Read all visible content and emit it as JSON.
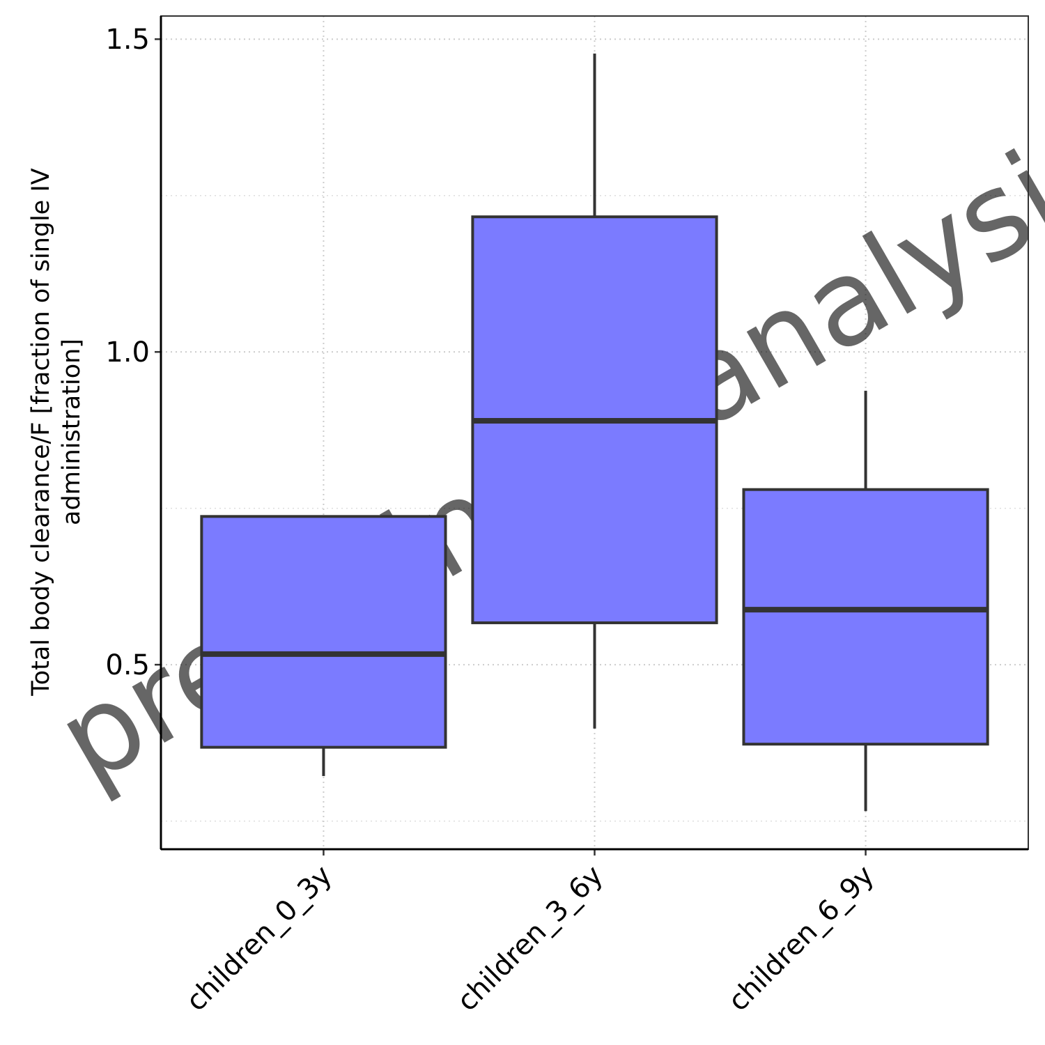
{
  "chart_data": {
    "type": "box",
    "watermark": "preliminary analysis",
    "ylabel": [
      "Total body clearance/F [fraction of single IV",
      "administration]"
    ],
    "categories": [
      "children_0_3y",
      "children_3_6y",
      "children_6_9y"
    ],
    "stats": [
      {
        "whisker_low": 0.322,
        "q1": 0.368,
        "median": 0.517,
        "q3": 0.737,
        "whisker_high": 0.737
      },
      {
        "whisker_low": 0.398,
        "q1": 0.567,
        "median": 0.89,
        "q3": 1.216,
        "whisker_high": 1.477
      },
      {
        "whisker_low": 0.266,
        "q1": 0.373,
        "median": 0.588,
        "q3": 0.78,
        "whisker_high": 0.938
      }
    ],
    "color": "#7b7bff",
    "ylim": [
      0.205,
      1.537
    ],
    "yticks": [
      0.5,
      {
        "value": 1,
        "label": "1.0"
      },
      1.5
    ],
    "minor_yticks": [
      0.25,
      0.75,
      1.25
    ],
    "grid": true
  }
}
